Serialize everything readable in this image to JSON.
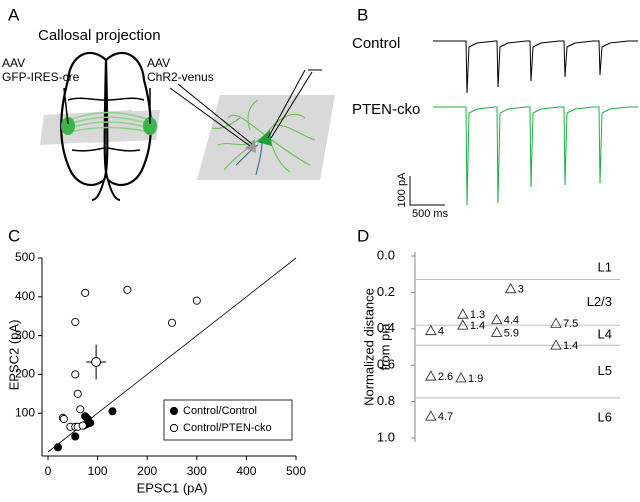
{
  "panels": {
    "A": {
      "letter": "A",
      "title": "Callosal projection",
      "left_label": [
        "AAV",
        "GFP-IRES-cre"
      ],
      "right_label": [
        "AAV",
        "ChR2-venus"
      ]
    },
    "B": {
      "letter": "B",
      "traces": [
        "Control",
        "PTEN-cko"
      ],
      "scale_y": "100 pA",
      "scale_x": "500 ms"
    },
    "C": {
      "letter": "C"
    },
    "D": {
      "letter": "D"
    }
  },
  "chart_data": [
    {
      "type": "scatter",
      "xlabel": "EPSC1 (pA)",
      "ylabel": "EPSC2 (pA)",
      "xlim": [
        0,
        500
      ],
      "ylim": [
        0,
        500
      ],
      "xticks": [
        0,
        100,
        200,
        300,
        400,
        500
      ],
      "yticks": [
        100,
        200,
        300,
        400,
        500
      ],
      "legend": "lower right",
      "series": [
        {
          "name": "Control/Control",
          "color": "#000000",
          "filled": true,
          "x": [
            20,
            55,
            72,
            75,
            80,
            78,
            85,
            130
          ],
          "values": [
            12,
            40,
            68,
            92,
            85,
            72,
            75,
            105
          ]
        },
        {
          "name": "Control/PTEN-cko",
          "color": "#000000",
          "filled": false,
          "x": [
            75,
            160,
            300,
            250,
            55,
            55,
            60,
            65,
            30,
            32,
            45,
            55,
            60,
            70
          ],
          "values": [
            410,
            418,
            390,
            333,
            335,
            200,
            150,
            110,
            88,
            85,
            65,
            65,
            65,
            68
          ]
        }
      ],
      "mean": {
        "x": 97,
        "y": 232,
        "xerr": 20,
        "yerr": 45
      },
      "reference_line": {
        "x": [
          0,
          500
        ],
        "y": [
          0,
          500
        ]
      }
    },
    {
      "type": "layer_scatter",
      "ylabel": [
        "Normalized distance",
        "from pia"
      ],
      "ylim": [
        0,
        1
      ],
      "inverted": true,
      "xlim": [
        0.57,
        6.14
      ],
      "yticks": [
        {
          "value": 0,
          "label": "0.0"
        },
        {
          "value": 0.2,
          "label": "0.2"
        },
        {
          "value": 0.4,
          "label": "0.4"
        },
        {
          "value": 0.6,
          "label": "0.6"
        },
        {
          "value": 0.8,
          "label": "0.8"
        },
        {
          "value": 1,
          "label": "1.0"
        }
      ],
      "layer_boundaries": [
        0.13,
        0.38,
        0.49,
        0.78
      ],
      "layers": [
        "L1",
        "L2/3",
        "L4",
        "L5",
        "L6"
      ],
      "x": [
        1,
        1,
        1,
        1.87,
        1.87,
        1.82,
        3.17,
        2.79,
        2.79,
        4.4,
        4.4
      ],
      "values": [
        0.41,
        0.66,
        0.88,
        0.32,
        0.38,
        0.67,
        0.18,
        0.35,
        0.42,
        0.37,
        0.49
      ],
      "point_labels": [
        "4",
        "2.6",
        "4.7",
        "1.3",
        "1.4",
        "1.9",
        "3",
        "4.4",
        "5.9",
        "7.5",
        "1.4"
      ]
    }
  ]
}
